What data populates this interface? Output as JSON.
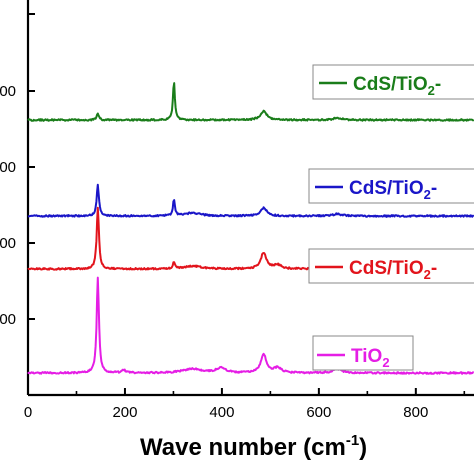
{
  "chart_data": {
    "type": "line",
    "title": "",
    "xlabel": {
      "main": "Wave number (cm",
      "sup": "-1",
      "close": ")"
    },
    "ylabel": "",
    "xlim": [
      0,
      920
    ],
    "xticks": [
      0,
      200,
      400,
      600,
      800
    ],
    "ytick_fragments": [
      "00",
      "00",
      "00",
      "00"
    ],
    "grid": false,
    "legend_placement": "inline-right",
    "series": [
      {
        "key": "tio2",
        "legend": {
          "base": "TiO",
          "sub": "2",
          "suffix": ""
        },
        "color": "#e51ee5",
        "baseline": 0.0,
        "peaks": [
          {
            "x": 144,
            "height": 96,
            "width": 3.5
          },
          {
            "x": 197,
            "height": 3,
            "width": 6
          },
          {
            "x": 340,
            "height": 4,
            "width": 30
          },
          {
            "x": 398,
            "height": 5,
            "width": 14
          },
          {
            "x": 486,
            "height": 18,
            "width": 9
          },
          {
            "x": 515,
            "height": 5,
            "width": 12
          },
          {
            "x": 638,
            "height": 4,
            "width": 14
          }
        ]
      },
      {
        "key": "cds_tio2_a",
        "legend": {
          "base": "CdS/TiO",
          "sub": "2",
          "suffix": "-"
        },
        "color": "#e2141c",
        "baseline": 104.0,
        "peaks": [
          {
            "x": 144,
            "height": 62,
            "width": 3.5
          },
          {
            "x": 301,
            "height": 7,
            "width": 3
          },
          {
            "x": 340,
            "height": 3,
            "width": 25
          },
          {
            "x": 486,
            "height": 16,
            "width": 9
          },
          {
            "x": 515,
            "height": 4,
            "width": 12
          },
          {
            "x": 638,
            "height": 3,
            "width": 14
          }
        ]
      },
      {
        "key": "cds_tio2_b",
        "legend": {
          "base": "CdS/TiO",
          "sub": "2",
          "suffix": "-"
        },
        "color": "#1a16c8",
        "baseline": 157.0,
        "peaks": [
          {
            "x": 144,
            "height": 31,
            "width": 3.5
          },
          {
            "x": 301,
            "height": 16,
            "width": 3
          },
          {
            "x": 340,
            "height": 3,
            "width": 25
          },
          {
            "x": 486,
            "height": 8,
            "width": 10
          },
          {
            "x": 638,
            "height": 2,
            "width": 14
          }
        ]
      },
      {
        "key": "cds_tio2_c",
        "legend": {
          "base": "CdS/TiO",
          "sub": "2",
          "suffix": "-"
        },
        "color": "#1a7d1a",
        "baseline": 253.0,
        "peaks": [
          {
            "x": 144,
            "height": 6,
            "width": 3.5
          },
          {
            "x": 301,
            "height": 38,
            "width": 3
          },
          {
            "x": 486,
            "height": 9,
            "width": 10
          },
          {
            "x": 638,
            "height": 2,
            "width": 14
          }
        ]
      }
    ]
  }
}
